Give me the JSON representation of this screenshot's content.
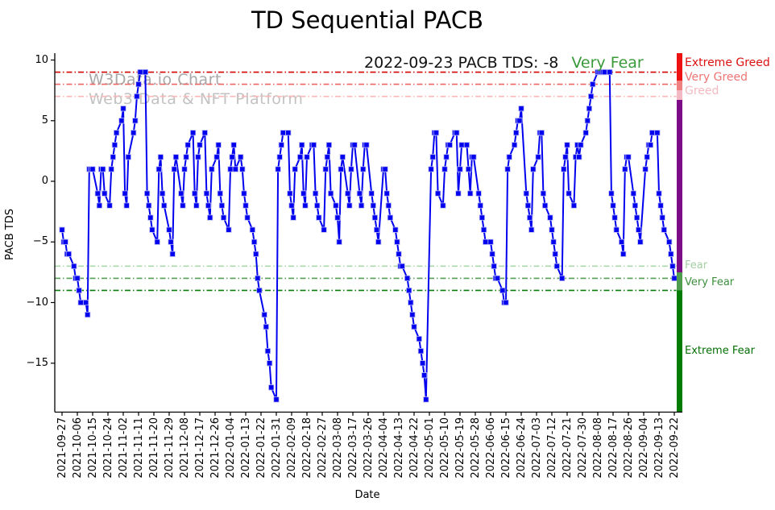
{
  "title": "TD Sequential PACB",
  "annotation": {
    "text": "2022-09-23 PACB TDS: -8",
    "sentiment": "Very Fear",
    "sentiment_color": "#3a9a3a"
  },
  "watermark": {
    "line1": "W3Data.io Chart",
    "line2": "Web3 Data & NFT Platform"
  },
  "chart_data": {
    "type": "line",
    "title": "TD Sequential PACB",
    "xlabel": "Date",
    "ylabel": "PACB TDS",
    "ylim": [
      -19,
      10.5
    ],
    "x_range": [
      "2021-09-27",
      "2022-09-22"
    ],
    "series_name": "PACB TDS",
    "series_color": "#0101ef",
    "marker": "square",
    "yticks": [
      10,
      5,
      0,
      -5,
      -10,
      -15
    ],
    "xticks": [
      "2021-09-27",
      "2021-10-06",
      "2021-10-15",
      "2021-10-24",
      "2021-11-02",
      "2021-11-11",
      "2021-11-20",
      "2021-11-29",
      "2021-12-08",
      "2021-12-17",
      "2021-12-26",
      "2022-01-04",
      "2022-01-13",
      "2022-01-22",
      "2022-01-31",
      "2022-02-09",
      "2022-02-18",
      "2022-02-27",
      "2022-03-08",
      "2022-03-17",
      "2022-03-26",
      "2022-04-04",
      "2022-04-13",
      "2022-04-22",
      "2022-05-01",
      "2022-05-10",
      "2022-05-19",
      "2022-05-28",
      "2022-06-06",
      "2022-06-15",
      "2022-06-24",
      "2022-07-03",
      "2022-07-12",
      "2022-07-21",
      "2022-07-30",
      "2022-08-08",
      "2022-08-17",
      "2022-08-26",
      "2022-09-04",
      "2022-09-13",
      "2022-09-22"
    ],
    "dates": [
      "2021-09-27",
      "2021-09-28",
      "2021-09-29",
      "2021-09-30",
      "2021-10-01",
      "2021-10-04",
      "2021-10-05",
      "2021-10-06",
      "2021-10-07",
      "2021-10-08",
      "2021-10-11",
      "2021-10-12",
      "2021-10-13",
      "2021-10-14",
      "2021-10-15",
      "2021-10-18",
      "2021-10-19",
      "2021-10-20",
      "2021-10-21",
      "2021-10-22",
      "2021-10-25",
      "2021-10-26",
      "2021-10-27",
      "2021-10-28",
      "2021-10-29",
      "2021-11-01",
      "2021-11-02",
      "2021-11-03",
      "2021-11-04",
      "2021-11-05",
      "2021-11-08",
      "2021-11-09",
      "2021-11-10",
      "2021-11-11",
      "2021-11-12",
      "2021-11-15",
      "2021-11-16",
      "2021-11-17",
      "2021-11-18",
      "2021-11-19",
      "2021-11-22",
      "2021-11-23",
      "2021-11-24",
      "2021-11-25",
      "2021-11-26",
      "2021-11-29",
      "2021-11-30",
      "2021-12-01",
      "2021-12-02",
      "2021-12-03",
      "2021-12-06",
      "2021-12-07",
      "2021-12-08",
      "2021-12-09",
      "2021-12-10",
      "2021-12-13",
      "2021-12-14",
      "2021-12-15",
      "2021-12-16",
      "2021-12-17",
      "2021-12-20",
      "2021-12-21",
      "2021-12-22",
      "2021-12-23",
      "2021-12-24",
      "2021-12-27",
      "2021-12-28",
      "2021-12-29",
      "2021-12-30",
      "2021-12-31",
      "2022-01-03",
      "2022-01-04",
      "2022-01-05",
      "2022-01-06",
      "2022-01-07",
      "2022-01-10",
      "2022-01-11",
      "2022-01-12",
      "2022-01-13",
      "2022-01-14",
      "2022-01-17",
      "2022-01-18",
      "2022-01-19",
      "2022-01-20",
      "2022-01-21",
      "2022-01-24",
      "2022-01-25",
      "2022-01-26",
      "2022-01-27",
      "2022-01-28",
      "2022-01-31",
      "2022-02-01",
      "2022-02-02",
      "2022-02-03",
      "2022-02-04",
      "2022-02-07",
      "2022-02-08",
      "2022-02-09",
      "2022-02-10",
      "2022-02-11",
      "2022-02-14",
      "2022-02-15",
      "2022-02-16",
      "2022-02-17",
      "2022-02-18",
      "2022-02-21",
      "2022-02-22",
      "2022-02-23",
      "2022-02-24",
      "2022-02-25",
      "2022-02-28",
      "2022-03-01",
      "2022-03-02",
      "2022-03-03",
      "2022-03-04",
      "2022-03-07",
      "2022-03-08",
      "2022-03-09",
      "2022-03-10",
      "2022-03-11",
      "2022-03-14",
      "2022-03-15",
      "2022-03-16",
      "2022-03-17",
      "2022-03-18",
      "2022-03-21",
      "2022-03-22",
      "2022-03-23",
      "2022-03-24",
      "2022-03-25",
      "2022-03-28",
      "2022-03-29",
      "2022-03-30",
      "2022-03-31",
      "2022-04-01",
      "2022-04-04",
      "2022-04-05",
      "2022-04-06",
      "2022-04-07",
      "2022-04-08",
      "2022-04-11",
      "2022-04-12",
      "2022-04-13",
      "2022-04-14",
      "2022-04-15",
      "2022-04-18",
      "2022-04-19",
      "2022-04-20",
      "2022-04-21",
      "2022-04-22",
      "2022-04-25",
      "2022-04-26",
      "2022-04-27",
      "2022-04-28",
      "2022-04-29",
      "2022-05-02",
      "2022-05-03",
      "2022-05-04",
      "2022-05-05",
      "2022-05-06",
      "2022-05-09",
      "2022-05-10",
      "2022-05-11",
      "2022-05-12",
      "2022-05-13",
      "2022-05-16",
      "2022-05-17",
      "2022-05-18",
      "2022-05-19",
      "2022-05-20",
      "2022-05-23",
      "2022-05-24",
      "2022-05-25",
      "2022-05-26",
      "2022-05-27",
      "2022-05-30",
      "2022-05-31",
      "2022-06-01",
      "2022-06-02",
      "2022-06-03",
      "2022-06-06",
      "2022-06-07",
      "2022-06-08",
      "2022-06-09",
      "2022-06-10",
      "2022-06-13",
      "2022-06-14",
      "2022-06-15",
      "2022-06-16",
      "2022-06-17",
      "2022-06-20",
      "2022-06-21",
      "2022-06-22",
      "2022-06-23",
      "2022-06-24",
      "2022-06-27",
      "2022-06-28",
      "2022-06-29",
      "2022-06-30",
      "2022-07-01",
      "2022-07-04",
      "2022-07-05",
      "2022-07-06",
      "2022-07-07",
      "2022-07-08",
      "2022-07-11",
      "2022-07-12",
      "2022-07-13",
      "2022-07-14",
      "2022-07-15",
      "2022-07-18",
      "2022-07-19",
      "2022-07-20",
      "2022-07-21",
      "2022-07-22",
      "2022-07-25",
      "2022-07-26",
      "2022-07-27",
      "2022-07-28",
      "2022-07-29",
      "2022-08-01",
      "2022-08-02",
      "2022-08-03",
      "2022-08-04",
      "2022-08-05",
      "2022-08-08",
      "2022-08-09",
      "2022-08-10",
      "2022-08-11",
      "2022-08-12",
      "2022-08-15",
      "2022-08-16",
      "2022-08-17",
      "2022-08-18",
      "2022-08-19",
      "2022-08-22",
      "2022-08-23",
      "2022-08-24",
      "2022-08-25",
      "2022-08-26",
      "2022-08-29",
      "2022-08-30",
      "2022-08-31",
      "2022-09-01",
      "2022-09-02",
      "2022-09-05",
      "2022-09-06",
      "2022-09-07",
      "2022-09-08",
      "2022-09-09",
      "2022-09-12",
      "2022-09-13",
      "2022-09-14",
      "2022-09-15",
      "2022-09-16",
      "2022-09-19",
      "2022-09-20",
      "2022-09-21",
      "2022-09-22"
    ],
    "values": [
      -4,
      -5,
      -5,
      -6,
      -6,
      -7,
      -8,
      -8,
      -9,
      -10,
      -10,
      -11,
      1,
      1,
      1,
      -1,
      -2,
      1,
      1,
      -1,
      -2,
      1,
      2,
      3,
      4,
      5,
      6,
      -1,
      -2,
      2,
      4,
      5,
      7,
      8,
      9,
      9,
      -1,
      -2,
      -3,
      -4,
      -5,
      1,
      2,
      -1,
      -2,
      -4,
      -5,
      -6,
      1,
      2,
      -1,
      -2,
      1,
      2,
      3,
      4,
      -1,
      -2,
      2,
      3,
      4,
      -1,
      -2,
      -3,
      1,
      2,
      3,
      -1,
      -2,
      -3,
      -4,
      1,
      2,
      3,
      1,
      2,
      1,
      -1,
      -2,
      -3,
      -4,
      -5,
      -6,
      -8,
      -9,
      -11,
      -12,
      -14,
      -15,
      -17,
      -18,
      1,
      2,
      3,
      4,
      4,
      -1,
      -2,
      -3,
      1,
      2,
      3,
      -1,
      -2,
      2,
      3,
      3,
      -1,
      -2,
      -3,
      -4,
      1,
      2,
      3,
      -1,
      -2,
      -3,
      -5,
      1,
      2,
      -1,
      -2,
      1,
      3,
      3,
      -1,
      -2,
      1,
      3,
      3,
      -1,
      -2,
      -3,
      -4,
      -5,
      1,
      1,
      -1,
      -2,
      -3,
      -4,
      -5,
      -6,
      -7,
      -7,
      -8,
      -9,
      -10,
      -11,
      -12,
      -13,
      -14,
      -15,
      -16,
      -18,
      1,
      2,
      4,
      4,
      -1,
      -2,
      1,
      2,
      3,
      3,
      4,
      4,
      -1,
      1,
      3,
      3,
      1,
      -1,
      2,
      2,
      -1,
      -2,
      -3,
      -4,
      -5,
      -5,
      -6,
      -7,
      -8,
      -8,
      -9,
      -10,
      -10,
      1,
      2,
      3,
      4,
      5,
      5,
      6,
      -1,
      -2,
      -3,
      -4,
      1,
      2,
      4,
      4,
      -1,
      -2,
      -3,
      -4,
      -5,
      -6,
      -7,
      -8,
      1,
      2,
      3,
      -1,
      -2,
      2,
      3,
      2,
      3,
      4,
      5,
      6,
      7,
      8,
      9,
      9,
      9,
      9,
      9,
      9,
      -1,
      -2,
      -3,
      -4,
      -5,
      -6,
      1,
      2,
      2,
      -1,
      -2,
      -3,
      -4,
      -5,
      1,
      2,
      3,
      3,
      4,
      4,
      -1,
      -2,
      -3,
      -4,
      -5,
      -6,
      -7,
      -8
    ],
    "threshold_lines": [
      {
        "value": 9,
        "color": "#d40000"
      },
      {
        "value": 8,
        "color": "#ef6666"
      },
      {
        "value": 7,
        "color": "#ffb6b6"
      },
      {
        "value": -7,
        "color": "#abd8ab"
      },
      {
        "value": -8,
        "color": "#55a055"
      },
      {
        "value": -9,
        "color": "#0b7d0b"
      }
    ],
    "zone_labels": [
      {
        "label": "Extreme Greed",
        "anchor": 9.75,
        "color": "#dd1111",
        "size": 14
      },
      {
        "label": "Very Greed",
        "anchor": 8.5,
        "color": "#ee7575",
        "size": 14
      },
      {
        "label": "Greed",
        "anchor": 7.4,
        "color": "#f3bac0",
        "size": 14
      },
      {
        "label": "Fear",
        "anchor": -7.0,
        "color": "#a3cfa3",
        "size": 13
      },
      {
        "label": "Very Fear",
        "anchor": -8.35,
        "color": "#3e8e3e",
        "size": 13
      },
      {
        "label": "Extreme Fear",
        "anchor": -14.0,
        "color": "#067006",
        "size": 13
      }
    ],
    "colorbar_segments": [
      {
        "from": 10.45,
        "to": 8.3,
        "color": "#ee1111"
      },
      {
        "from": 8.3,
        "to": 7.5,
        "color": "#f08080"
      },
      {
        "from": 7.5,
        "to": 6.7,
        "color": "#f2b8c4"
      },
      {
        "from": 6.7,
        "to": -7.5,
        "color": "#7d0b87"
      },
      {
        "from": -7.5,
        "to": -9.0,
        "color": "#4f9e4f"
      },
      {
        "from": -9.0,
        "to": -19.0,
        "color": "#007c00"
      }
    ]
  }
}
